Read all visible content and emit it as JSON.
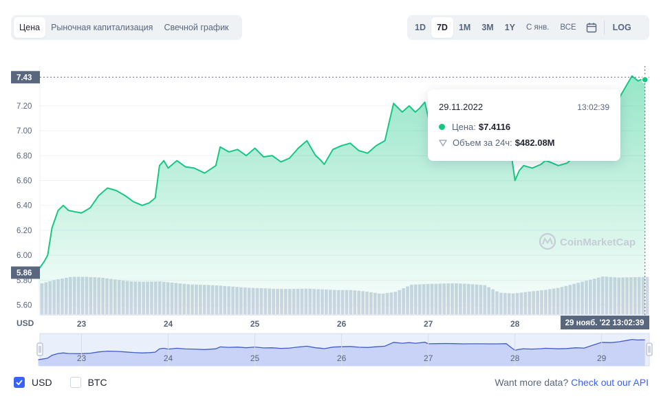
{
  "chart_tabs": [
    "Цена",
    "Рыночная капитализация",
    "Свечной график"
  ],
  "active_chart_tab": "Цена",
  "range_buttons": [
    "1D",
    "7D",
    "1M",
    "3M",
    "1Y",
    "С янв.",
    "ВСЕ"
  ],
  "active_range": "7D",
  "calendar_icon": "calendar-icon",
  "log_label": "LOG",
  "tooltip": {
    "date": "29.11.2022",
    "time": "13:02:39",
    "price_label": "Цена:",
    "price_value": "$7.4116",
    "volume_label": "Объем за 24ч:",
    "volume_value": "$482.08M"
  },
  "watermark": "CoinMarketCap",
  "currency_toggles": [
    {
      "label": "USD",
      "checked": true
    },
    {
      "label": "BTC",
      "checked": false
    }
  ],
  "more_data": {
    "text": "Want more data?",
    "link": "Check out our API"
  },
  "colors": {
    "line": "#16c784",
    "accent": "#3861fb",
    "volume": "#cfd6e4",
    "label_bg": "#58667e"
  },
  "chart_data": {
    "type": "area",
    "y_unit_label": "USD",
    "ylim": [
      5.52,
      7.52
    ],
    "yticks": [
      5.6,
      5.8,
      6.0,
      6.2,
      6.4,
      6.6,
      6.8,
      7.0,
      7.2
    ],
    "x_tick_labels": [
      "23",
      "24",
      "25",
      "26",
      "27",
      "28",
      "29"
    ],
    "navigator_tick_labels": [
      "23",
      "24",
      "25",
      "26",
      "27",
      "28",
      "29"
    ],
    "current_price_label": "7.43",
    "low_marker_label": "5.86",
    "crosshair_label": "29 нояб. '22   13:02:39",
    "series": [
      {
        "x": [
          22.5,
          22.57,
          22.61,
          22.66,
          22.73,
          22.79,
          22.85,
          22.92,
          23.0,
          23.1,
          23.2,
          23.3,
          23.4,
          23.5,
          23.6,
          23.7,
          23.78,
          23.85,
          23.9,
          23.95,
          24.0,
          24.1,
          24.2,
          24.3,
          24.42,
          24.55,
          24.6,
          24.7,
          24.8,
          24.9,
          25.0,
          25.1,
          25.2,
          25.3,
          25.4,
          25.5,
          25.6,
          25.7,
          25.75,
          25.8,
          25.9,
          26.0,
          26.1,
          26.2,
          26.3,
          26.4,
          26.5,
          26.6,
          26.7,
          26.78,
          26.85,
          26.9,
          26.96,
          27.0,
          27.1,
          27.2,
          27.3,
          27.4,
          27.5,
          27.6,
          27.7,
          27.8,
          27.9,
          27.97,
          28.0,
          28.05,
          28.1,
          28.2,
          28.3,
          28.35,
          28.4,
          28.5,
          28.6,
          28.7,
          28.8,
          28.9,
          29.0,
          29.1,
          29.2,
          29.3,
          29.35,
          29.42,
          29.45,
          29.5
        ],
        "y": [
          5.88,
          5.95,
          6.0,
          6.22,
          6.36,
          6.4,
          6.36,
          6.35,
          6.34,
          6.38,
          6.48,
          6.54,
          6.52,
          6.48,
          6.43,
          6.4,
          6.42,
          6.46,
          6.72,
          6.76,
          6.7,
          6.76,
          6.71,
          6.7,
          6.66,
          6.72,
          6.87,
          6.83,
          6.85,
          6.8,
          6.86,
          6.79,
          6.8,
          6.75,
          6.78,
          6.86,
          6.92,
          6.8,
          6.77,
          6.73,
          6.85,
          6.88,
          6.9,
          6.84,
          6.82,
          6.88,
          6.92,
          7.22,
          7.15,
          7.2,
          7.15,
          7.18,
          7.23,
          7.11,
          7.12,
          7.13,
          7.12,
          7.1,
          7.11,
          7.11,
          7.1,
          7.1,
          7.12,
          6.75,
          6.6,
          6.68,
          6.72,
          6.7,
          6.73,
          6.76,
          6.75,
          6.72,
          6.74,
          6.8,
          6.78,
          7.0,
          7.22,
          7.2,
          7.26,
          7.38,
          7.44,
          7.4,
          7.41,
          7.41
        ]
      }
    ],
    "volume_levels": [
      0.82,
      0.92,
      0.99,
      0.99,
      0.97,
      0.92,
      0.87,
      0.86,
      0.87,
      0.83,
      0.79,
      0.78,
      0.76,
      0.73,
      0.7,
      0.69,
      0.67,
      0.67,
      0.68,
      0.66,
      0.64,
      0.64,
      0.6,
      0.54,
      0.6,
      0.78,
      0.8,
      0.81,
      0.82,
      0.8,
      0.77,
      0.57,
      0.55,
      0.6,
      0.64,
      0.7,
      0.8,
      0.9,
      1.0,
      0.97,
      0.98,
      0.99
    ],
    "grid": true,
    "legend": "none"
  }
}
